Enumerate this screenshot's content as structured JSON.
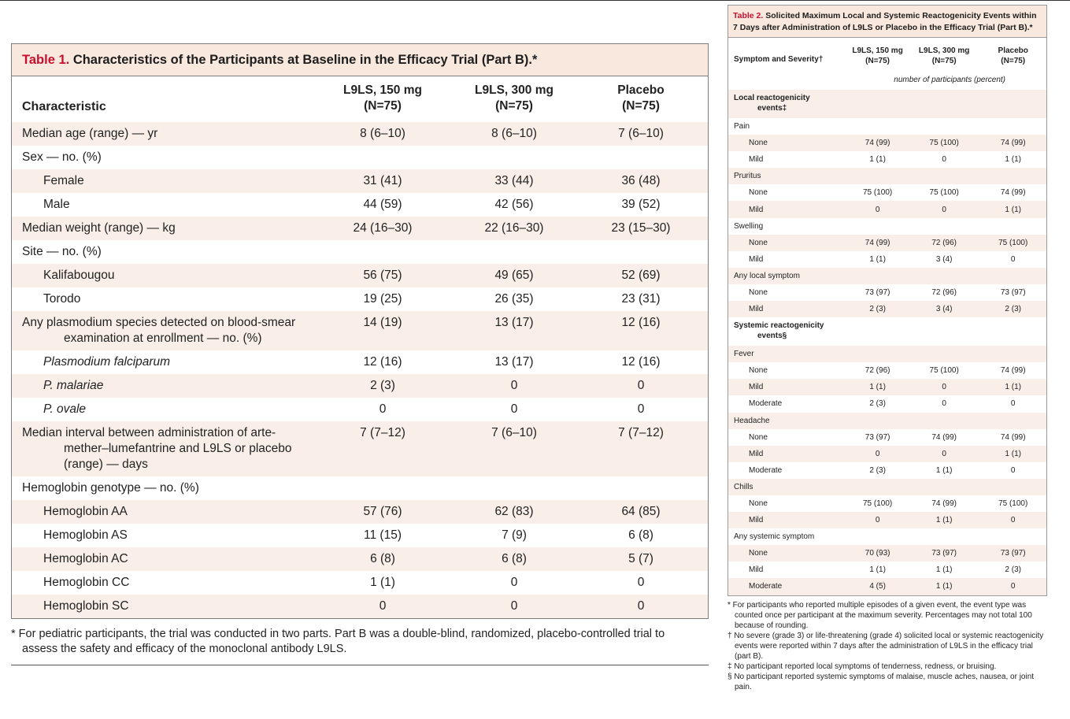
{
  "table1": {
    "label": "Table 1.",
    "title": "Characteristics of the Participants at Baseline in the Efficacy Trial (Part B).*",
    "header": {
      "characteristic": "Characteristic",
      "col1": [
        "L9LS, 150 mg",
        "(N=75)"
      ],
      "col2": [
        "L9LS, 300 mg",
        "(N=75)"
      ],
      "col3": [
        "Placebo",
        "(N=75)"
      ]
    },
    "rows": [
      {
        "label": [
          "Median age (range) — yr"
        ],
        "v": [
          "8 (6–10)",
          "8 (6–10)",
          "7 (6–10)"
        ]
      },
      {
        "label": [
          "Sex — no. (%)"
        ],
        "v": [
          "",
          "",
          ""
        ]
      },
      {
        "label": [
          "Female"
        ],
        "v": [
          "31 (41)",
          "33 (44)",
          "36 (48)"
        ]
      },
      {
        "label": [
          "Male"
        ],
        "v": [
          "44 (59)",
          "42 (56)",
          "39 (52)"
        ]
      },
      {
        "label": [
          "Median weight (range) — kg"
        ],
        "v": [
          "24 (16–30)",
          "22 (16–30)",
          "23 (15–30)"
        ]
      },
      {
        "label": [
          "Site — no. (%)"
        ],
        "v": [
          "",
          "",
          ""
        ]
      },
      {
        "label": [
          "Kalifabougou"
        ],
        "v": [
          "56 (75)",
          "49 (65)",
          "52 (69)"
        ]
      },
      {
        "label": [
          "Torodo"
        ],
        "v": [
          "19 (25)",
          "26 (35)",
          "23 (31)"
        ]
      },
      {
        "label": [
          "Any plasmodium species detected on blood-smear",
          "examination at enrollment — no. (%)"
        ],
        "v": [
          "14 (19)",
          "13 (17)",
          "12 (16)"
        ]
      },
      {
        "label": [
          "Plasmodium falciparum"
        ],
        "v": [
          "12 (16)",
          "13 (17)",
          "12 (16)"
        ]
      },
      {
        "label": [
          "P. malariae"
        ],
        "v": [
          "2 (3)",
          "0",
          "0"
        ]
      },
      {
        "label": [
          "P. ovale"
        ],
        "v": [
          "0",
          "0",
          "0"
        ]
      },
      {
        "label": [
          "Median interval between administration of arte-",
          "mether–lumefantrine and L9LS or placebo",
          "(range) — days"
        ],
        "v": [
          "7 (7–12)",
          "7 (6–10)",
          "7 (7–12)"
        ]
      },
      {
        "label": [
          "Hemoglobin genotype — no. (%)"
        ],
        "v": [
          "",
          "",
          ""
        ]
      },
      {
        "label": [
          "Hemoglobin AA"
        ],
        "v": [
          "57 (76)",
          "62 (83)",
          "64 (85)"
        ]
      },
      {
        "label": [
          "Hemoglobin AS"
        ],
        "v": [
          "11 (15)",
          "7 (9)",
          "6 (8)"
        ]
      },
      {
        "label": [
          "Hemoglobin AC"
        ],
        "v": [
          "6 (8)",
          "6 (8)",
          "5 (7)"
        ]
      },
      {
        "label": [
          "Hemoglobin CC"
        ],
        "v": [
          "1 (1)",
          "0",
          "0"
        ]
      },
      {
        "label": [
          "Hemoglobin SC"
        ],
        "v": [
          "0",
          "0",
          "0"
        ]
      }
    ],
    "footnote": "* For pediatric participants, the trial was conducted in two parts. Part B was a double-blind, randomized, placebo-controlled trial to assess the safety and efficacy of the monoclonal antibody L9LS."
  },
  "table2": {
    "label": "Table 2.",
    "title": "Solicited Maximum Local and Systemic Reactogenicity Events within 7 Days after Administration of L9LS or Placebo in the Efficacy Trial (Part B).*",
    "header": {
      "symptom": "Symptom and Severity†",
      "col1": [
        "L9LS, 150 mg",
        "(N=75)"
      ],
      "col2": [
        "L9LS, 300 mg",
        "(N=75)"
      ],
      "col3": [
        "Placebo",
        "(N=75)"
      ]
    },
    "units": "number of participants (percent)",
    "rows": [
      {
        "label": [
          "Local reactogenicity",
          "events‡"
        ],
        "v": [
          "",
          "",
          ""
        ]
      },
      {
        "label": [
          "Pain"
        ],
        "v": [
          "",
          "",
          ""
        ]
      },
      {
        "label": [
          "None"
        ],
        "v": [
          "74 (99)",
          "75 (100)",
          "74 (99)"
        ]
      },
      {
        "label": [
          "Mild"
        ],
        "v": [
          "1 (1)",
          "0",
          "1 (1)"
        ]
      },
      {
        "label": [
          "Pruritus"
        ],
        "v": [
          "",
          "",
          ""
        ]
      },
      {
        "label": [
          "None"
        ],
        "v": [
          "75 (100)",
          "75 (100)",
          "74 (99)"
        ]
      },
      {
        "label": [
          "Mild"
        ],
        "v": [
          "0",
          "0",
          "1 (1)"
        ]
      },
      {
        "label": [
          "Swelling"
        ],
        "v": [
          "",
          "",
          ""
        ]
      },
      {
        "label": [
          "None"
        ],
        "v": [
          "74 (99)",
          "72 (96)",
          "75 (100)"
        ]
      },
      {
        "label": [
          "Mild"
        ],
        "v": [
          "1 (1)",
          "3 (4)",
          "0"
        ]
      },
      {
        "label": [
          "Any local symptom"
        ],
        "v": [
          "",
          "",
          ""
        ]
      },
      {
        "label": [
          "None"
        ],
        "v": [
          "73 (97)",
          "72 (96)",
          "73 (97)"
        ]
      },
      {
        "label": [
          "Mild"
        ],
        "v": [
          "2 (3)",
          "3 (4)",
          "2 (3)"
        ]
      },
      {
        "label": [
          "Systemic reactogenicity",
          "events§"
        ],
        "v": [
          "",
          "",
          ""
        ]
      },
      {
        "label": [
          "Fever"
        ],
        "v": [
          "",
          "",
          ""
        ]
      },
      {
        "label": [
          "None"
        ],
        "v": [
          "72 (96)",
          "75 (100)",
          "74 (99)"
        ]
      },
      {
        "label": [
          "Mild"
        ],
        "v": [
          "1 (1)",
          "0",
          "1 (1)"
        ]
      },
      {
        "label": [
          "Moderate"
        ],
        "v": [
          "2 (3)",
          "0",
          "0"
        ]
      },
      {
        "label": [
          "Headache"
        ],
        "v": [
          "",
          "",
          ""
        ]
      },
      {
        "label": [
          "None"
        ],
        "v": [
          "73 (97)",
          "74 (99)",
          "74 (99)"
        ]
      },
      {
        "label": [
          "Mild"
        ],
        "v": [
          "0",
          "0",
          "1 (1)"
        ]
      },
      {
        "label": [
          "Moderate"
        ],
        "v": [
          "2 (3)",
          "1 (1)",
          "0"
        ]
      },
      {
        "label": [
          "Chills"
        ],
        "v": [
          "",
          "",
          ""
        ]
      },
      {
        "label": [
          "None"
        ],
        "v": [
          "75 (100)",
          "74 (99)",
          "75 (100)"
        ]
      },
      {
        "label": [
          "Mild"
        ],
        "v": [
          "0",
          "1 (1)",
          "0"
        ]
      },
      {
        "label": [
          "Any systemic symptom"
        ],
        "v": [
          "",
          "",
          ""
        ]
      },
      {
        "label": [
          "None"
        ],
        "v": [
          "70 (93)",
          "73 (97)",
          "73 (97)"
        ]
      },
      {
        "label": [
          "Mild"
        ],
        "v": [
          "1 (1)",
          "1 (1)",
          "2 (3)"
        ]
      },
      {
        "label": [
          "Moderate"
        ],
        "v": [
          "4 (5)",
          "1 (1)",
          "0"
        ]
      }
    ],
    "footnotes": [
      "* For participants who reported multiple episodes of a given event, the event type was counted once per participant at the maximum severity. Percentages may not total 100 because of rounding.",
      "† No severe (grade 3) or life-threatening (grade 4) solicited local or systemic reactogenicity events were reported within 7 days after the administration of L9LS in the efficacy trial (part B).",
      "‡ No participant reported local symptoms of tenderness, redness, or bruising.",
      "§ No participant reported systemic symptoms of malaise, muscle aches, nausea, or joint pain."
    ]
  }
}
